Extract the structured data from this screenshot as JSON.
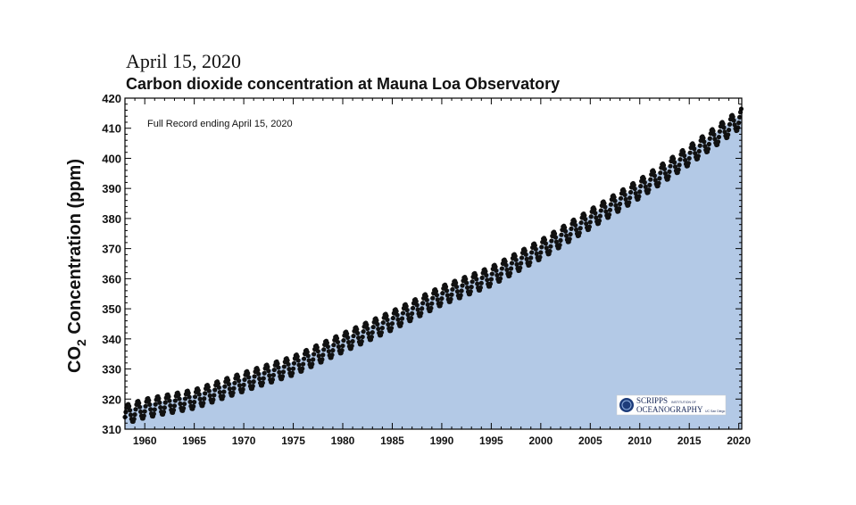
{
  "header": {
    "date": "April 15, 2020",
    "title": "Carbon dioxide concentration at Mauna Loa Observatory"
  },
  "colors": {
    "fill": "#b3c9e6",
    "points": "#111111",
    "axis": "#000000"
  },
  "chart_data": {
    "type": "scatter",
    "title": "Carbon dioxide concentration at Mauna Loa Observatory",
    "ylabel": "CO2 Concentration (ppm)",
    "ylabel_main": "CO",
    "ylabel_sub": "2",
    "ylabel_rest": " Concentration (ppm)",
    "annotation": "Full Record ending April 15, 2020",
    "logo": {
      "line1": "SCRIPPS",
      "line1_small": "INSTITUTION OF",
      "line2": "OCEANOGRAPHY",
      "line2_small": "UC San Diego"
    },
    "xlim": [
      1958,
      2020.3
    ],
    "ylim": [
      310,
      420
    ],
    "xticks": [
      1960,
      1965,
      1970,
      1975,
      1980,
      1985,
      1990,
      1995,
      2000,
      2005,
      2010,
      2015,
      2020
    ],
    "yticks": [
      310,
      320,
      330,
      340,
      350,
      360,
      370,
      380,
      390,
      400,
      410,
      420
    ],
    "grid": false,
    "fill_below": true,
    "series": [
      {
        "trend_anchors_x": [
          1958.2,
          1960,
          1965,
          1970,
          1975,
          1980,
          1985,
          1990,
          1995,
          2000,
          2005,
          2010,
          2015,
          2020.3
        ],
        "trend_anchors_y": [
          315,
          316.9,
          320.0,
          325.7,
          331.1,
          338.7,
          346.1,
          354.4,
          360.8,
          369.7,
          379.8,
          389.9,
          401.0,
          413.5
        ],
        "seasonal_amplitude": 3.2,
        "points_per_year": 12
      }
    ]
  }
}
